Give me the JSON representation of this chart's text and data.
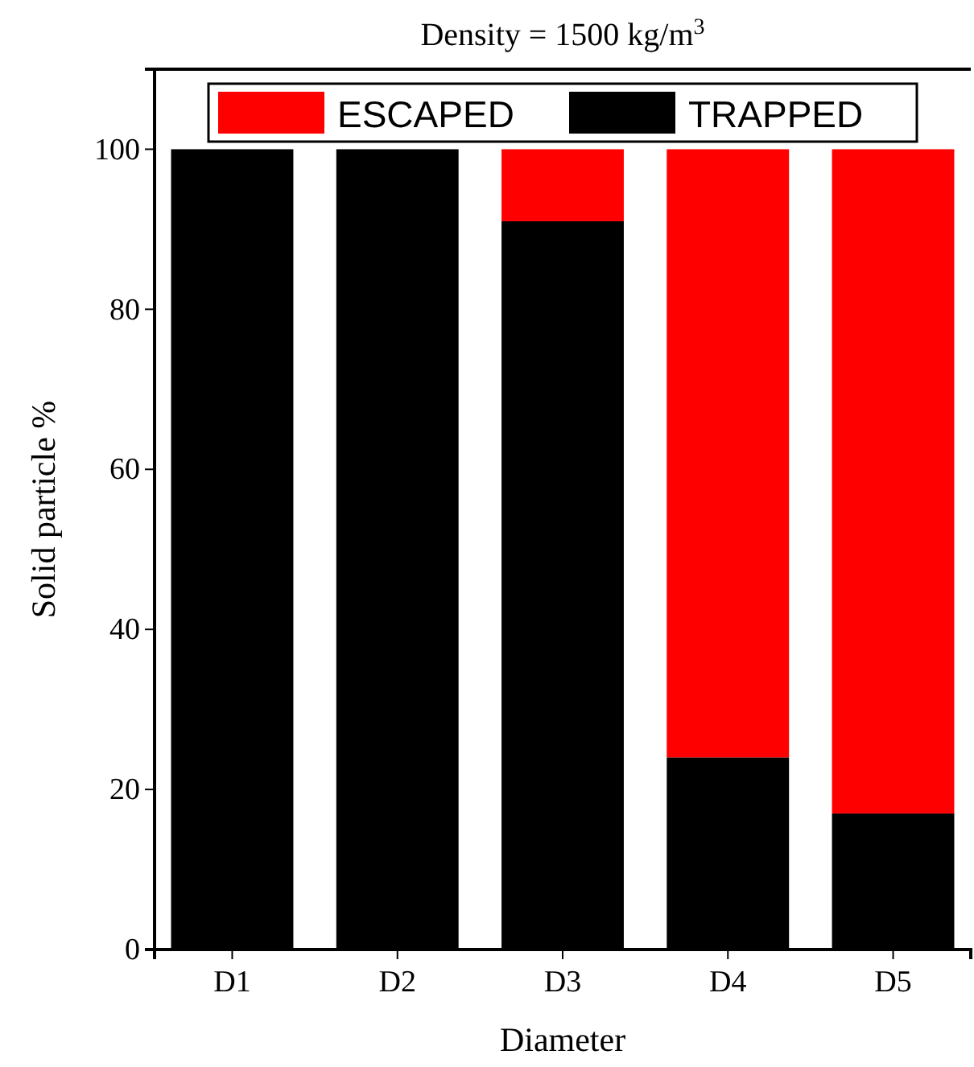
{
  "chart_data": {
    "type": "bar",
    "title": "Density = 1500 kg/m$^{3}$",
    "xlabel": "Diameter",
    "ylabel": "Solid particle %",
    "categories": [
      "D1",
      "D2",
      "D3",
      "D4",
      "D5"
    ],
    "stacked": true,
    "series": [
      {
        "name": "TRAPPED",
        "color": "#000000",
        "values": [
          100,
          100,
          91,
          24,
          17
        ]
      },
      {
        "name": "ESCAPED",
        "color": "#ff0000",
        "values": [
          0,
          0,
          9,
          76,
          83
        ]
      }
    ],
    "ylim": [
      0,
      110
    ],
    "yticks": [
      0,
      20,
      40,
      60,
      80,
      100
    ],
    "legend": "top",
    "grid": false
  }
}
